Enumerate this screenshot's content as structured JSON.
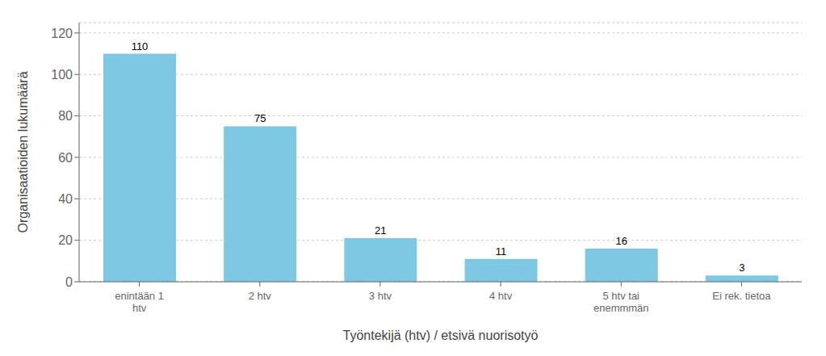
{
  "chart_data": {
    "type": "bar",
    "categories": [
      "enintään 1\nhtv",
      "2 htv",
      "3 htv",
      "4 htv",
      "5 htv tai\nenemmmän",
      "Ei rek. tietoa"
    ],
    "values": [
      110,
      75,
      21,
      11,
      16,
      3
    ],
    "color": "#7ec8e3",
    "xlabel": "Työntekijä (htv) / etsivä nuorisotyö",
    "ylabel": "Organisaatioiden lukumäärä",
    "ylim": [
      0,
      125
    ],
    "yticks": [
      0,
      20,
      40,
      60,
      80,
      100,
      120
    ],
    "grid": true,
    "data_labels": true
  }
}
